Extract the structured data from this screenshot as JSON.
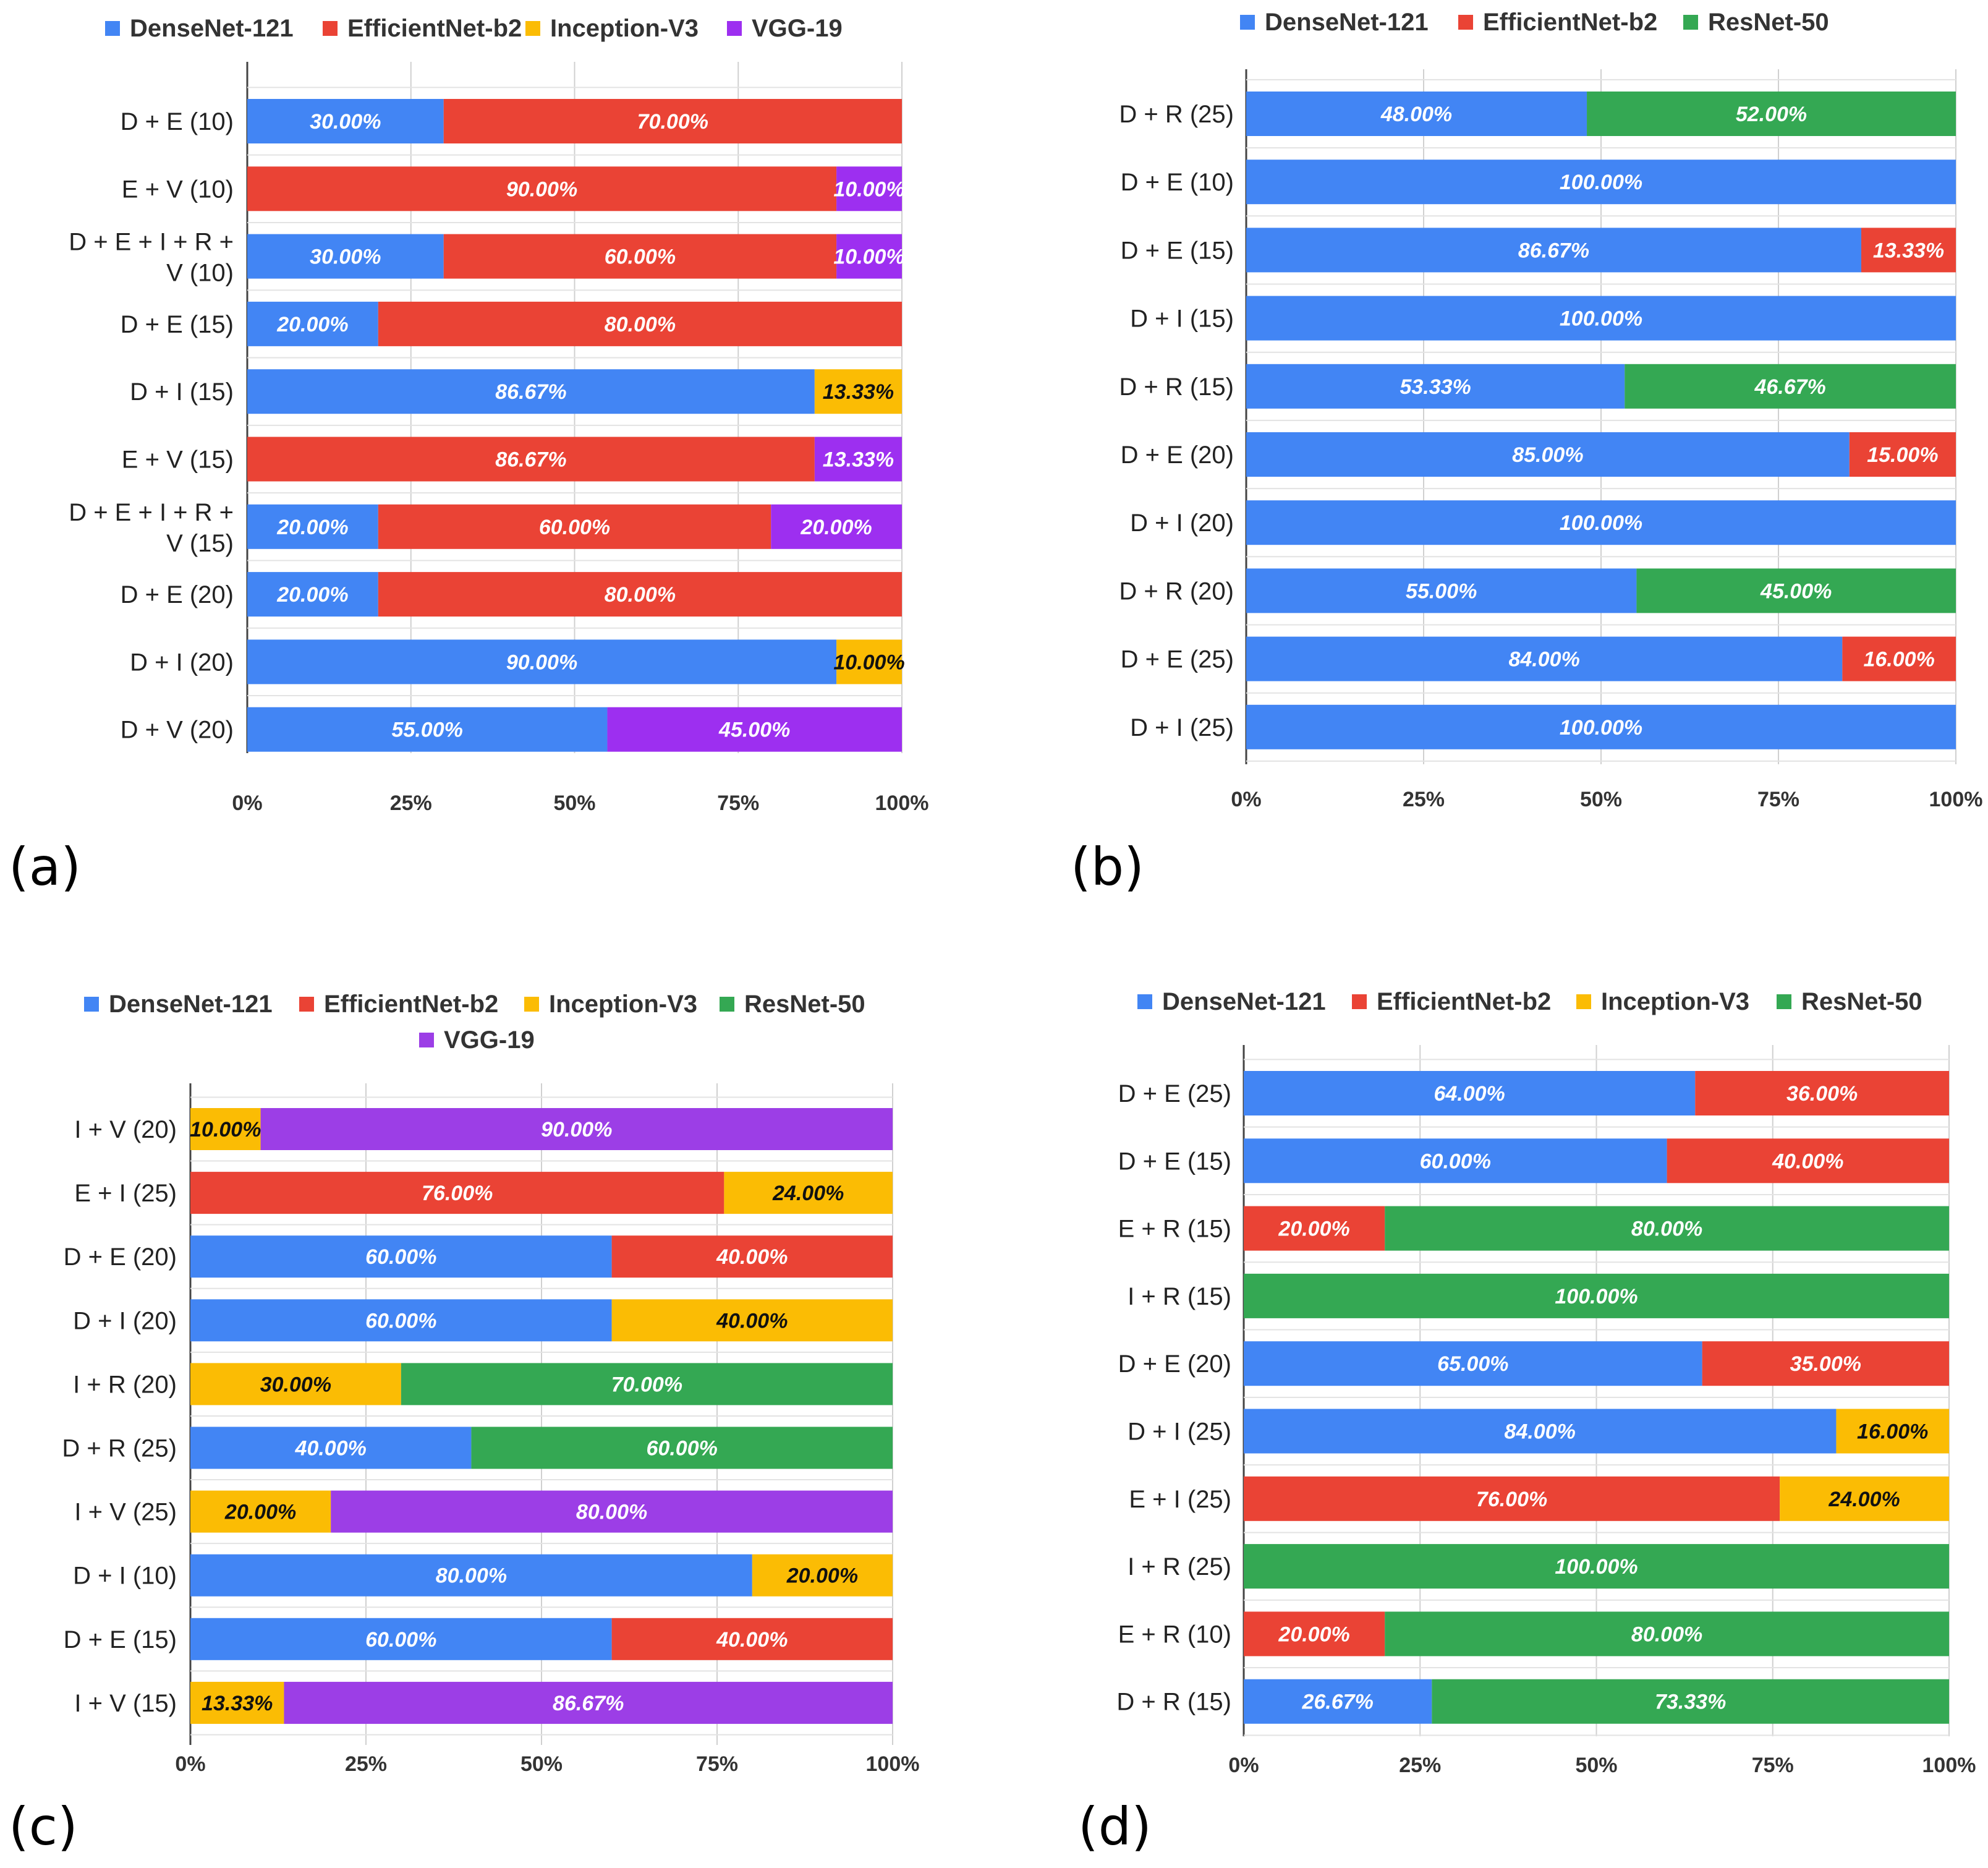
{
  "figure": {
    "panel_labels": [
      "(a)",
      "(b)",
      "(c)",
      "(d)"
    ],
    "x_tick_labels": [
      "0%",
      "25%",
      "50%",
      "75%",
      "100%"
    ]
  },
  "colors": {
    "DenseNet-121": "#4285f4",
    "EfficientNet-b2": "#ea4335",
    "Inception-V3": "#fbbc04",
    "ResNet-50": "#34a853",
    "VGG-19": "#9d2ff0",
    "VGG-19 (c)": "#9c3ee6"
  },
  "chart_data": [
    {
      "panel": "(a)",
      "type": "bar",
      "orientation": "horizontal",
      "stacked": "percent",
      "title": "",
      "xlabel": "",
      "ylabel": "",
      "xlim": [
        0,
        100
      ],
      "x_ticks": [
        "0%",
        "25%",
        "50%",
        "75%",
        "100%"
      ],
      "legend": [
        "DenseNet-121",
        "EfficientNet-b2",
        "Inception-V3",
        "VGG-19"
      ],
      "legend_position": "top",
      "categories": [
        "D + E (10)",
        "E + V (10)",
        "D + E + I + R + V (10)",
        "D + E (15)",
        "D + I (15)",
        "E + V (15)",
        "D + E + I + R + V (15)",
        "D + E (20)",
        "D + I (20)",
        "D + V (20)"
      ],
      "category_lines": [
        [
          "D + E (10)"
        ],
        [
          "E + V (10)"
        ],
        [
          "D + E + I + R +",
          "V (10)"
        ],
        [
          "D + E (15)"
        ],
        [
          "D + I (15)"
        ],
        [
          "E + V (15)"
        ],
        [
          "D + E + I + R +",
          "V (15)"
        ],
        [
          "D + E (20)"
        ],
        [
          "D + I (20)"
        ],
        [
          "D + V (20)"
        ]
      ],
      "series": [
        {
          "name": "DenseNet-121",
          "values": [
            30.0,
            0,
            30.0,
            20.0,
            86.67,
            0,
            20.0,
            20.0,
            90.0,
            55.0
          ]
        },
        {
          "name": "EfficientNet-b2",
          "values": [
            70.0,
            90.0,
            60.0,
            80.0,
            0,
            86.67,
            60.0,
            80.0,
            0,
            0
          ]
        },
        {
          "name": "Inception-V3",
          "values": [
            0,
            0,
            0,
            0,
            13.33,
            0,
            0,
            0,
            10.0,
            0
          ]
        },
        {
          "name": "VGG-19",
          "values": [
            0,
            10.0,
            10.0,
            0,
            0,
            13.33,
            20.0,
            0,
            0,
            45.0
          ]
        }
      ]
    },
    {
      "panel": "(b)",
      "type": "bar",
      "orientation": "horizontal",
      "stacked": "percent",
      "title": "",
      "xlabel": "",
      "ylabel": "",
      "xlim": [
        0,
        100
      ],
      "x_ticks": [
        "0%",
        "25%",
        "50%",
        "75%",
        "100%"
      ],
      "legend": [
        "DenseNet-121",
        "EfficientNet-b2",
        "ResNet-50"
      ],
      "legend_position": "top",
      "categories": [
        "D + R (25)",
        "D + E (10)",
        "D + E (15)",
        "D + I (15)",
        "D + R (15)",
        "D + E (20)",
        "D + I (20)",
        "D + R (20)",
        "D + E (25)",
        "D + I (25)"
      ],
      "category_lines": [
        [
          "D + R (25)"
        ],
        [
          "D + E (10)"
        ],
        [
          "D + E (15)"
        ],
        [
          "D + I (15)"
        ],
        [
          "D + R (15)"
        ],
        [
          "D + E (20)"
        ],
        [
          "D + I (20)"
        ],
        [
          "D + R (20)"
        ],
        [
          "D + E (25)"
        ],
        [
          "D + I (25)"
        ]
      ],
      "series": [
        {
          "name": "DenseNet-121",
          "values": [
            48.0,
            100.0,
            86.67,
            100.0,
            53.33,
            85.0,
            100.0,
            55.0,
            84.0,
            100.0
          ]
        },
        {
          "name": "EfficientNet-b2",
          "values": [
            0,
            0,
            13.33,
            0,
            0,
            15.0,
            0,
            0,
            16.0,
            0
          ]
        },
        {
          "name": "ResNet-50",
          "values": [
            52.0,
            0,
            0,
            0,
            46.67,
            0,
            0,
            45.0,
            0,
            0
          ]
        }
      ]
    },
    {
      "panel": "(c)",
      "type": "bar",
      "orientation": "horizontal",
      "stacked": "percent",
      "title": "",
      "xlabel": "",
      "ylabel": "",
      "xlim": [
        0,
        100
      ],
      "x_ticks": [
        "0%",
        "25%",
        "50%",
        "75%",
        "100%"
      ],
      "legend": [
        "DenseNet-121",
        "EfficientNet-b2",
        "Inception-V3",
        "ResNet-50",
        "VGG-19"
      ],
      "legend_position": "top",
      "categories": [
        "I + V (20)",
        "E + I (25)",
        "D + E (20)",
        "D + I (20)",
        "I + R (20)",
        "D + R (25)",
        "I + V (25)",
        "D + I (10)",
        "D + E (15)",
        "I + V (15)"
      ],
      "category_lines": [
        [
          "I + V (20)"
        ],
        [
          "E + I (25)"
        ],
        [
          "D + E (20)"
        ],
        [
          "D + I (20)"
        ],
        [
          "I + R (20)"
        ],
        [
          "D + R (25)"
        ],
        [
          "I + V (25)"
        ],
        [
          "D + I (10)"
        ],
        [
          "D + E (15)"
        ],
        [
          "I + V (15)"
        ]
      ],
      "series": [
        {
          "name": "DenseNet-121",
          "values": [
            0,
            0,
            60.0,
            60.0,
            0,
            40.0,
            0,
            80.0,
            60.0,
            0
          ]
        },
        {
          "name": "EfficientNet-b2",
          "values": [
            0,
            76.0,
            40.0,
            0,
            0,
            0,
            0,
            0,
            40.0,
            0
          ]
        },
        {
          "name": "Inception-V3",
          "values": [
            10.0,
            24.0,
            0,
            40.0,
            30.0,
            0,
            20.0,
            20.0,
            0,
            13.33
          ]
        },
        {
          "name": "ResNet-50",
          "values": [
            0,
            0,
            0,
            0,
            70.0,
            60.0,
            0,
            0,
            0,
            0
          ]
        },
        {
          "name": "VGG-19",
          "values": [
            90.0,
            0,
            0,
            0,
            0,
            0,
            80.0,
            0,
            0,
            86.67
          ]
        }
      ]
    },
    {
      "panel": "(d)",
      "type": "bar",
      "orientation": "horizontal",
      "stacked": "percent",
      "title": "",
      "xlabel": "",
      "ylabel": "",
      "xlim": [
        0,
        100
      ],
      "x_ticks": [
        "0%",
        "25%",
        "50%",
        "75%",
        "100%"
      ],
      "legend": [
        "DenseNet-121",
        "EfficientNet-b2",
        "Inception-V3",
        "ResNet-50"
      ],
      "legend_position": "top",
      "categories": [
        "D + E (25)",
        "D + E (15)",
        "E + R (15)",
        "I + R (15)",
        "D + E (20)",
        "D + I (25)",
        "E + I (25)",
        "I + R (25)",
        "E + R (10)",
        "D + R (15)"
      ],
      "category_lines": [
        [
          "D + E (25)"
        ],
        [
          "D + E (15)"
        ],
        [
          "E + R (15)"
        ],
        [
          "I + R (15)"
        ],
        [
          "D + E (20)"
        ],
        [
          "D + I (25)"
        ],
        [
          "E + I (25)"
        ],
        [
          "I + R (25)"
        ],
        [
          "E + R (10)"
        ],
        [
          "D + R (15)"
        ]
      ],
      "series": [
        {
          "name": "DenseNet-121",
          "values": [
            64.0,
            60.0,
            0,
            0,
            65.0,
            84.0,
            0,
            0,
            0,
            26.67
          ]
        },
        {
          "name": "EfficientNet-b2",
          "values": [
            36.0,
            40.0,
            20.0,
            0,
            35.0,
            0,
            76.0,
            0,
            20.0,
            0
          ]
        },
        {
          "name": "Inception-V3",
          "values": [
            0,
            0,
            0,
            0,
            0,
            16.0,
            24.0,
            0,
            0,
            0
          ]
        },
        {
          "name": "ResNet-50",
          "values": [
            0,
            0,
            80.0,
            100.0,
            0,
            0,
            0,
            100.0,
            80.0,
            73.33
          ]
        }
      ]
    }
  ]
}
